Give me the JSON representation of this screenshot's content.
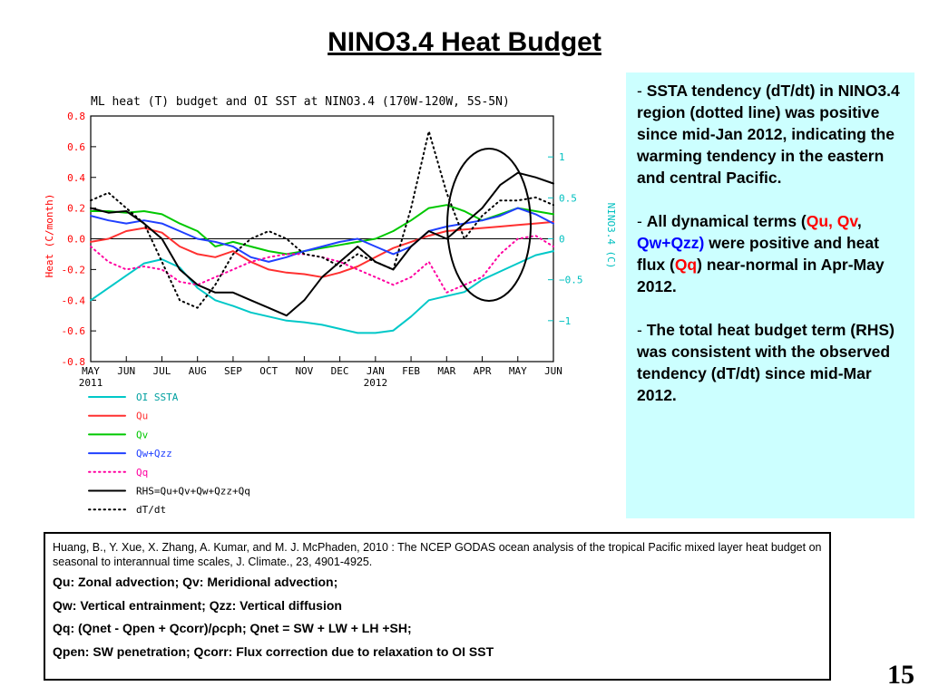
{
  "slide": {
    "title": "NINO3.4 Heat Budget",
    "page_number": "15"
  },
  "notes": {
    "p1": {
      "dash": "- ",
      "text": "SSTA tendency (dT/dt) in NINO3.4 region (dotted line) was positive since mid-Jan 2012, indicating the warming tendency in the eastern and central Pacific."
    },
    "p2": {
      "dash": "- ",
      "t1": "All dynamical terms (",
      "qu": "Qu,",
      "qv": "Qv",
      "comma": ", ",
      "qwqzz": "Qw+Qzz)",
      "t2": " were positive and heat flux (",
      "qq": "Qq",
      "t3": ") near-normal in Apr-May 2012."
    },
    "p3": {
      "dash": "- ",
      "text": "The total heat budget term (RHS) was consistent with the observed tendency (dT/dt)  since mid-Mar 2012."
    }
  },
  "reference": {
    "citation": "Huang, B., Y. Xue, X. Zhang, A. Kumar, and M. J. McPhaden, 2010 : The NCEP GODAS ocean analysis of the tropical Pacific mixed layer heat budget on seasonal to interannual time scales,  J. Climate., 23, 4901-4925.",
    "lines": [
      "Qu: Zonal advection;    Qv: Meridional advection;",
      "Qw: Vertical entrainment;  Qzz: Vertical diffusion",
      "Qq: (Qnet - Qpen + Qcorr)/ρcph;  Qnet = SW + LW + LH +SH;",
      "Qpen: SW penetration; Qcorr: Flux correction due to relaxation to OI SST"
    ]
  },
  "chart_data": {
    "type": "line",
    "title": "ML heat (T) budget and OI SST at NINO3.4 (170W-120W, 5S-5N)",
    "ylabel": "Heat (C/month)",
    "y2label": "NINO3.4 (C)",
    "ylim": [
      -0.8,
      0.8
    ],
    "y2lim": [
      -1.5,
      1.5
    ],
    "yticks": [
      "0.8",
      "0.6",
      "0.4",
      "0.2",
      "0.0",
      "-0.2",
      "-0.4",
      "-0.6",
      "-0.8"
    ],
    "y2ticks": [
      "1",
      "0.5",
      "0",
      "-0.5",
      "-1"
    ],
    "months": [
      "MAY",
      "JUN",
      "JUL",
      "AUG",
      "SEP",
      "OCT",
      "NOV",
      "DEC",
      "JAN",
      "FEB",
      "MAR",
      "APR",
      "MAY",
      "JUN"
    ],
    "year_labels": [
      {
        "index": 0,
        "label": "2011"
      },
      {
        "index": 8,
        "label": "2012"
      }
    ],
    "x": [
      0,
      0.5,
      1,
      1.5,
      2,
      2.5,
      3,
      3.5,
      4,
      4.5,
      5,
      5.5,
      6,
      6.5,
      7,
      7.5,
      8,
      8.5,
      9,
      9.5,
      10,
      10.5,
      11,
      11.5,
      12,
      12.5,
      13
    ],
    "series": [
      {
        "name": "OI SSTA",
        "axis": "right",
        "color": "#00c8c8",
        "dash": "solid",
        "values": [
          -0.75,
          -0.6,
          -0.45,
          -0.3,
          -0.25,
          -0.35,
          -0.6,
          -0.75,
          -0.82,
          -0.9,
          -0.95,
          -1.0,
          -1.02,
          -1.05,
          -1.1,
          -1.15,
          -1.15,
          -1.12,
          -0.95,
          -0.75,
          -0.7,
          -0.65,
          -0.5,
          -0.4,
          -0.3,
          -0.2,
          -0.15
        ]
      },
      {
        "name": "Qu",
        "color": "#ff3030",
        "dash": "solid",
        "values": [
          -0.02,
          0.0,
          0.05,
          0.07,
          0.04,
          -0.05,
          -0.1,
          -0.12,
          -0.08,
          -0.15,
          -0.2,
          -0.22,
          -0.23,
          -0.25,
          -0.22,
          -0.18,
          -0.12,
          -0.06,
          -0.02,
          0.02,
          0.05,
          0.06,
          0.07,
          0.08,
          0.09,
          0.1,
          0.11
        ]
      },
      {
        "name": "Qv",
        "color": "#00c800",
        "dash": "solid",
        "values": [
          0.18,
          0.18,
          0.17,
          0.18,
          0.16,
          0.1,
          0.05,
          -0.05,
          -0.02,
          -0.05,
          -0.08,
          -0.1,
          -0.08,
          -0.06,
          -0.04,
          -0.02,
          0.0,
          0.05,
          0.12,
          0.2,
          0.22,
          0.18,
          0.12,
          0.16,
          0.2,
          0.18,
          0.16
        ]
      },
      {
        "name": "Qw+Qzz",
        "color": "#2040ff",
        "dash": "solid",
        "values": [
          0.15,
          0.12,
          0.1,
          0.12,
          0.1,
          0.05,
          0.0,
          -0.02,
          -0.05,
          -0.12,
          -0.15,
          -0.12,
          -0.08,
          -0.05,
          -0.02,
          0.0,
          -0.05,
          -0.1,
          -0.05,
          0.05,
          0.08,
          0.1,
          0.12,
          0.15,
          0.2,
          0.16,
          0.1
        ]
      },
      {
        "name": "Qq",
        "color": "#ff00a0",
        "dash": "dot",
        "values": [
          -0.05,
          -0.15,
          -0.2,
          -0.18,
          -0.2,
          -0.28,
          -0.3,
          -0.25,
          -0.2,
          -0.15,
          -0.12,
          -0.1,
          -0.1,
          -0.12,
          -0.15,
          -0.2,
          -0.25,
          -0.3,
          -0.25,
          -0.15,
          -0.35,
          -0.3,
          -0.25,
          -0.1,
          0.0,
          0.02,
          -0.05
        ]
      },
      {
        "name": "RHS=Qu+Qv+Qw+Qzz+Qq",
        "color": "#000000",
        "dash": "solid",
        "values": [
          0.2,
          0.17,
          0.18,
          0.1,
          0.0,
          -0.2,
          -0.3,
          -0.35,
          -0.35,
          -0.4,
          -0.45,
          -0.5,
          -0.4,
          -0.25,
          -0.15,
          -0.05,
          -0.15,
          -0.2,
          -0.05,
          0.05,
          0.0,
          0.1,
          0.2,
          0.35,
          0.43,
          0.4,
          0.36
        ]
      },
      {
        "name": "dT/dt",
        "color": "#000000",
        "dash": "dot",
        "values": [
          0.25,
          0.3,
          0.2,
          0.1,
          -0.15,
          -0.4,
          -0.45,
          -0.3,
          -0.1,
          0.0,
          0.05,
          0.0,
          -0.1,
          -0.12,
          -0.18,
          -0.1,
          -0.15,
          -0.2,
          0.2,
          0.7,
          0.3,
          0.0,
          0.15,
          0.25,
          0.25,
          0.27,
          0.22
        ]
      }
    ],
    "annotation": "ellipse around Mar-Jun 2012"
  }
}
